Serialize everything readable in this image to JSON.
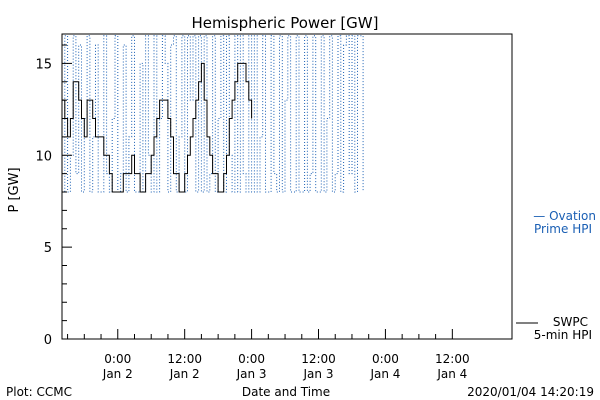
{
  "chart_data": {
    "type": "line",
    "title": "Hemispheric Power [GW]",
    "ylabel": "P [GW]",
    "xlabel": "Date and Time",
    "ylim": [
      0,
      16.6
    ],
    "y_ticks": [
      0,
      5,
      10,
      15
    ],
    "x_range_hours": [
      -10,
      44
    ],
    "x_ticks": [
      {
        "hour": 0,
        "time": "0:00",
        "date": "Jan 2"
      },
      {
        "hour": 12,
        "time": "12:00",
        "date": "Jan 2"
      },
      {
        "hour": 24,
        "time": "0:00",
        "date": "Jan 3"
      },
      {
        "hour": 36,
        "time": "12:00",
        "date": "Jan 3"
      },
      {
        "hour": 48,
        "time": "0:00",
        "date": "Jan 4"
      },
      {
        "hour": 60,
        "time": "12:00",
        "date": "Jan 4"
      }
    ],
    "series": [
      {
        "name": "SWPC 5-min HPI",
        "color": "#000000",
        "style": "solid",
        "hours": [
          -10,
          -9.5,
          -9,
          -8.5,
          -8,
          -7.5,
          -7,
          -6.5,
          -6,
          -5.5,
          -5,
          -4.5,
          -4,
          -3.5,
          -3,
          -2.5,
          -2,
          -1.5,
          -1,
          0,
          0.5,
          1,
          1.5,
          2,
          2.5,
          3,
          3.5,
          4,
          4.5,
          5,
          5.5,
          6,
          6.5,
          7,
          7.5,
          8,
          8.5,
          9,
          9.5,
          10,
          10.5,
          11,
          11.5,
          12,
          12.5,
          13,
          13.5,
          14,
          14.5,
          15,
          15.5,
          16,
          16.5,
          17,
          17.5,
          18,
          18.5,
          19,
          19.5,
          20,
          20.5,
          21,
          21.5,
          22,
          22.5,
          23,
          23.5,
          24
        ],
        "values": [
          13,
          12,
          11,
          12,
          14,
          14,
          13,
          12,
          11,
          13,
          13,
          12,
          11,
          11,
          11,
          10,
          10,
          9,
          8,
          8,
          8,
          9,
          9,
          9,
          10,
          9,
          9,
          8,
          8,
          9,
          9,
          10,
          11,
          12,
          13,
          13,
          13,
          12,
          11,
          9,
          9,
          8,
          8,
          9,
          10,
          11,
          12,
          13,
          14,
          15,
          13,
          11,
          10,
          9,
          9,
          8,
          8,
          9,
          10,
          12,
          13,
          14,
          15,
          15,
          15,
          14,
          13,
          12
        ]
      },
      {
        "name": "Ovation Prime HPI",
        "color": "#1a5fb4",
        "style": "dotted",
        "hours": [
          -10,
          -9.5,
          -9,
          -8.5,
          -8,
          -7.5,
          -7,
          -6.5,
          -6,
          -5.5,
          -5,
          -4.5,
          -4,
          -3.5,
          -3,
          -2.5,
          -2,
          -1.5,
          -1,
          -0.5,
          0,
          0.5,
          1,
          1.5,
          2,
          2.5,
          3,
          3.5,
          4,
          4.5,
          5,
          5.5,
          6,
          6.5,
          7,
          7.5,
          8,
          8.5,
          9,
          9.5,
          10,
          10.5,
          11,
          11.5,
          12,
          12.5,
          13,
          13.5,
          14,
          14.5,
          15,
          15.5,
          16,
          16.5,
          17,
          17.5,
          18,
          18.5,
          19,
          19.5,
          20,
          20.5,
          21,
          21.5,
          22,
          22.5,
          23,
          23.5,
          24,
          24.5,
          25,
          25.5,
          26,
          26.5,
          27,
          27.5,
          28,
          28.5,
          29,
          29.5,
          30,
          30.5,
          31,
          31.5,
          32,
          32.5,
          33,
          33.5,
          34,
          34.5,
          35,
          35.5,
          36,
          36.5,
          37,
          37.5,
          38,
          38.5,
          39,
          39.5,
          40,
          40.5,
          41,
          41.5,
          42,
          42.5,
          43,
          43.5,
          44
        ],
        "values": [
          8,
          16.5,
          8,
          10,
          16.5,
          9,
          16,
          8,
          12,
          16.5,
          8,
          11,
          16,
          8,
          8,
          16.5,
          9,
          8,
          12,
          16.5,
          8,
          9,
          16,
          8,
          11,
          16.5,
          8,
          8,
          15,
          8,
          16.5,
          10,
          8,
          16.5,
          8,
          12,
          16.5,
          15,
          8,
          16,
          16.5,
          8,
          11,
          16.5,
          8,
          16.5,
          13,
          16.5,
          8,
          16.5,
          8,
          16.5,
          8,
          9,
          16.5,
          8,
          12,
          16.5,
          8,
          16.5,
          10,
          8,
          16.5,
          8,
          16.5,
          9,
          8,
          16.5,
          8,
          16.5,
          8,
          11,
          16.5,
          8,
          8,
          16.5,
          9,
          8,
          16.5,
          8,
          13,
          16.5,
          8,
          8,
          16.5,
          8,
          8,
          16.5,
          8,
          9,
          16.5,
          8,
          8,
          16.5,
          8,
          12,
          16.5,
          8,
          9,
          16.5,
          8,
          16,
          16.5,
          9,
          16.5,
          8,
          16.5,
          16.5,
          8
        ]
      }
    ],
    "legend": [
      {
        "series": "Ovation Prime HPI",
        "lines": [
          "— Ovation",
          "Prime HPI"
        ],
        "color": "#1a5fb4"
      },
      {
        "series": "SWPC 5-min HPI",
        "lines": [
          "SWPC",
          "5-min HPI"
        ],
        "color": "#000000"
      }
    ],
    "legend_placement": "right"
  },
  "footer": {
    "left": "Plot: CCMC",
    "right": "2020/01/04 14:20:19"
  }
}
